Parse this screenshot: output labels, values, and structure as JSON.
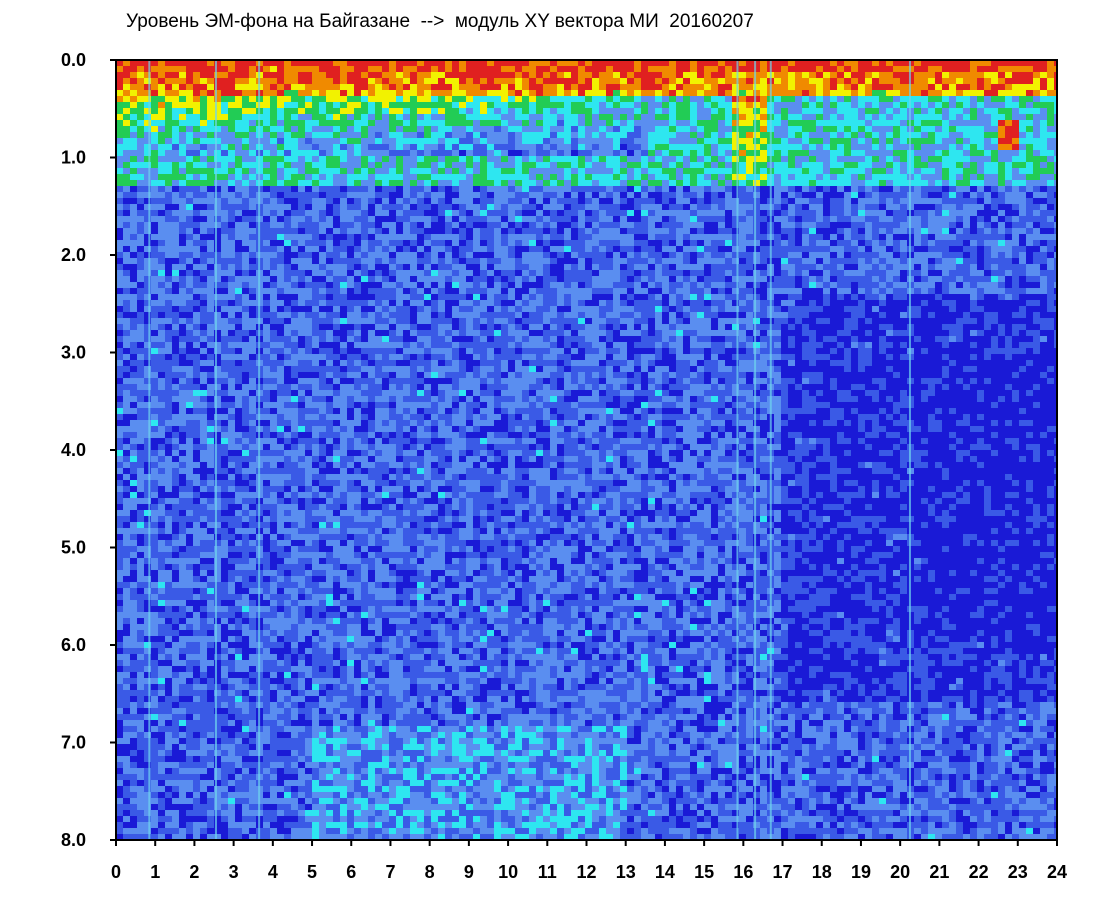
{
  "chart_data": {
    "type": "heatmap",
    "title": "Уровень ЭМ-фона на Байгазане  -->  модуль XY вектора МИ  20160207",
    "xlim": [
      0,
      24
    ],
    "ylim": [
      0,
      8
    ],
    "y_inverted": true,
    "x_ticks": [
      0,
      1,
      2,
      3,
      4,
      5,
      6,
      7,
      8,
      9,
      10,
      11,
      12,
      13,
      14,
      15,
      16,
      17,
      18,
      19,
      20,
      21,
      22,
      23,
      24
    ],
    "x_tick_labels": [
      "0",
      "1",
      "2",
      "3",
      "4",
      "5",
      "6",
      "7",
      "8",
      "9",
      "10",
      "11",
      "12",
      "13",
      "14",
      "15",
      "16",
      "17",
      "18",
      "19",
      "20",
      "21",
      "22",
      "23",
      "24"
    ],
    "y_ticks": [
      0,
      1,
      2,
      3,
      4,
      5,
      6,
      7,
      8
    ],
    "y_tick_labels": [
      "0.0",
      "1.0",
      "2.0",
      "3.0",
      "4.0",
      "5.0",
      "6.0",
      "7.0",
      "8.0"
    ],
    "colormap": [
      "#1a1ad6",
      "#3a5ae6",
      "#5a8ef0",
      "#2ee6f0",
      "#22cc55",
      "#f2f200",
      "#f08a00",
      "#e02020"
    ],
    "background_color": "#4a6ee0",
    "grid": false,
    "legend": "none",
    "features": [
      {
        "x": [
          0.0,
          24.0
        ],
        "y": [
          0.0,
          0.35
        ],
        "level": "high"
      },
      {
        "x": [
          0.0,
          13.0
        ],
        "y": [
          0.3,
          1.0
        ],
        "level": "medium-high"
      },
      {
        "x": [
          15.8,
          16.5
        ],
        "y": [
          0.0,
          1.3
        ],
        "level": "high"
      },
      {
        "x": [
          22.6,
          22.9
        ],
        "y": [
          0.6,
          0.9
        ],
        "level": "high"
      },
      {
        "x": [
          17.0,
          24.0
        ],
        "y": [
          2.5,
          6.5
        ],
        "level": "low"
      },
      {
        "x": [
          5.0,
          13.0
        ],
        "y": [
          6.8,
          8.0
        ],
        "level": "medium"
      }
    ],
    "vertical_streaks_x": [
      0.85,
      2.55,
      3.65,
      15.85,
      16.3,
      16.7,
      20.25
    ]
  }
}
